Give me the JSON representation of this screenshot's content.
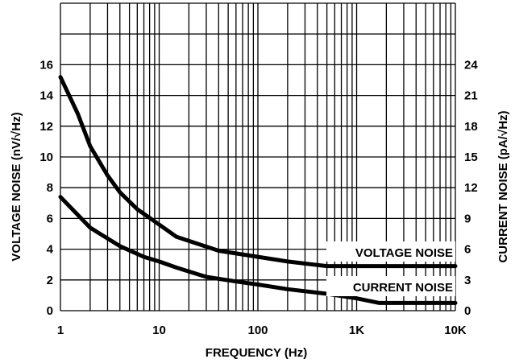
{
  "chart_data": {
    "type": "line",
    "x_scale": "log",
    "xlabel": "FREQUENCY (Hz)",
    "ylabel_left": "VOLTAGE NOISE (nV/√Hz)",
    "ylabel_right": "CURRENT NOISE (pA/√Hz)",
    "xlim": [
      1,
      10000
    ],
    "ylim_left": [
      0,
      20
    ],
    "ylim_right": [
      0,
      30
    ],
    "x_ticks": [
      1,
      10,
      100,
      1000,
      10000
    ],
    "x_tick_labels": [
      "1",
      "10",
      "100",
      "1K",
      "10K"
    ],
    "y_left_ticks": [
      0,
      2,
      4,
      6,
      8,
      10,
      12,
      14,
      16
    ],
    "y_left_tick_labels": [
      "0",
      "2",
      "4",
      "6",
      "8",
      "10",
      "12",
      "14",
      "16"
    ],
    "y_right_ticks": [
      0,
      3,
      6,
      9,
      12,
      15,
      18,
      21,
      24
    ],
    "y_right_tick_labels": [
      "0",
      "3",
      "6",
      "9",
      "12",
      "15",
      "18",
      "21",
      "24"
    ],
    "grid": true,
    "series": [
      {
        "name": "VOLTAGE NOISE",
        "axis": "left",
        "x": [
          1,
          1.5,
          2,
          3,
          4,
          6,
          10,
          15,
          40,
          100,
          200,
          500,
          1000,
          10000
        ],
        "y": [
          15.2,
          12.8,
          10.7,
          8.8,
          7.7,
          6.6,
          5.6,
          4.8,
          3.9,
          3.5,
          3.2,
          2.9,
          2.9,
          2.9
        ]
      },
      {
        "name": "CURRENT NOISE",
        "axis": "left",
        "x": [
          1,
          2,
          4,
          7,
          10,
          15,
          30,
          60,
          100,
          200,
          500,
          1000,
          1700,
          3000,
          10000
        ],
        "y": [
          7.4,
          5.4,
          4.2,
          3.5,
          3.2,
          2.8,
          2.2,
          1.9,
          1.7,
          1.4,
          1.1,
          0.8,
          0.5,
          0.5,
          0.5
        ]
      }
    ],
    "annotations": [
      "VOLTAGE NOISE",
      "CURRENT NOISE"
    ]
  }
}
